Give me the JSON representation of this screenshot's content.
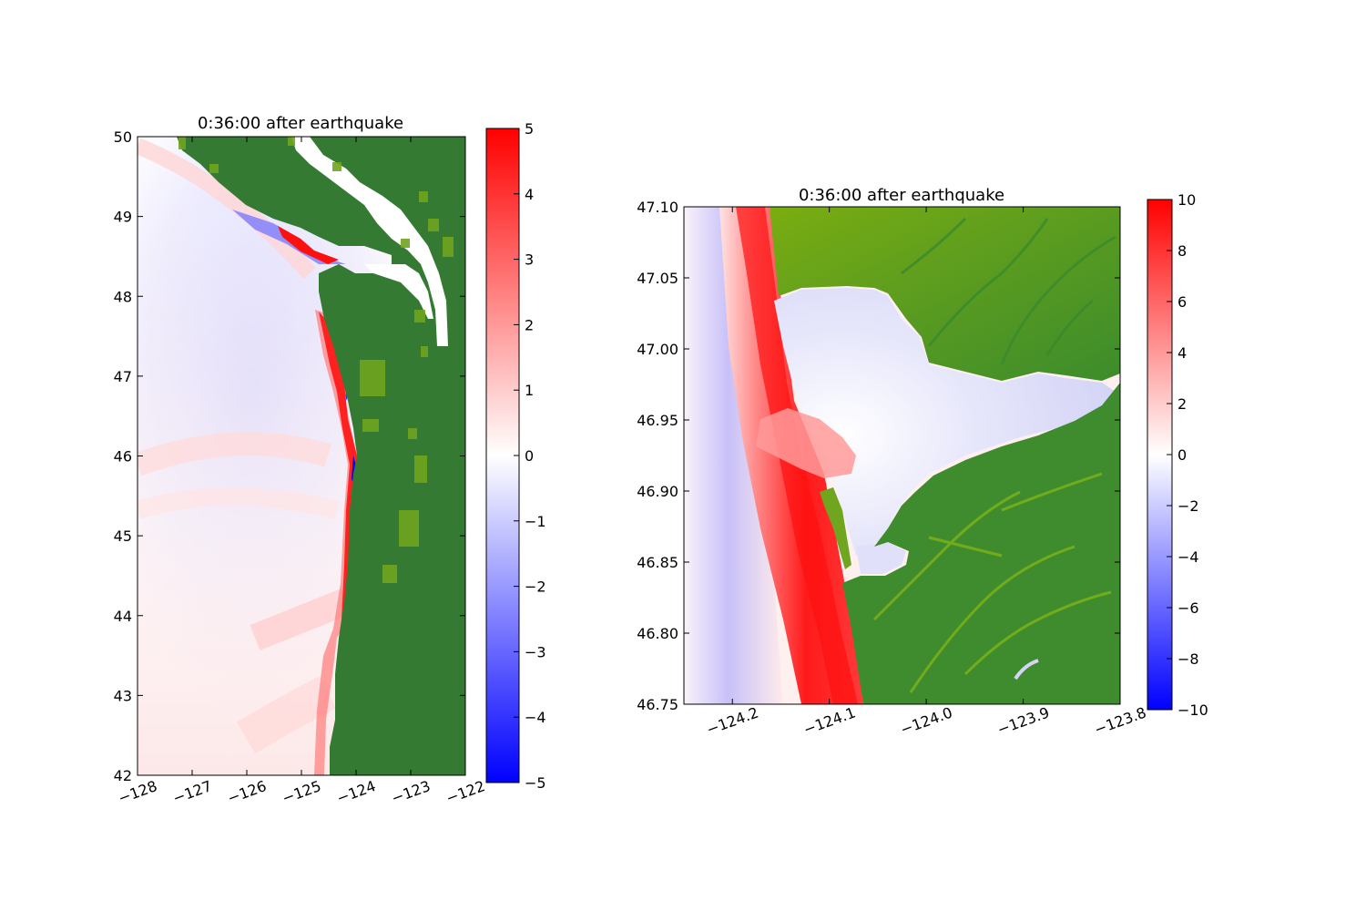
{
  "chart_data": [
    {
      "type": "heatmap",
      "title": "0:36:00 after earthquake",
      "xlabel": "",
      "ylabel": "",
      "xlim": [
        -128,
        -122
      ],
      "ylim": [
        42,
        50
      ],
      "x_ticks": [
        "−128",
        "−127",
        "−126",
        "−125",
        "−124",
        "−123",
        "−122"
      ],
      "y_ticks": [
        "42",
        "43",
        "44",
        "45",
        "46",
        "47",
        "48",
        "49",
        "50"
      ],
      "colorbar": {
        "range": [
          -5,
          5
        ],
        "ticks": [
          "−5",
          "−4",
          "−3",
          "−2",
          "−1",
          "0",
          "1",
          "2",
          "3",
          "4",
          "5"
        ],
        "colormap": "bwr",
        "colors": {
          "low": "#0000ff",
          "mid": "#ffffff",
          "high": "#ff0000"
        }
      },
      "land_color": "#357a32",
      "land_light_color": "#6fa51f",
      "grid": false,
      "legend": "none"
    },
    {
      "type": "heatmap",
      "title": "0:36:00 after earthquake",
      "xlabel": "",
      "ylabel": "",
      "xlim": [
        -124.25,
        -123.8
      ],
      "ylim": [
        46.75,
        47.1
      ],
      "x_ticks": [
        "−124.2",
        "−124.1",
        "−124.0",
        "−123.9",
        "−123.8"
      ],
      "y_ticks": [
        "46.75",
        "46.80",
        "46.85",
        "46.90",
        "46.95",
        "47.00",
        "47.05",
        "47.10"
      ],
      "colorbar": {
        "range": [
          -10,
          10
        ],
        "ticks": [
          "−10",
          "−8",
          "−6",
          "−4",
          "−2",
          "0",
          "2",
          "4",
          "6",
          "8",
          "10"
        ],
        "colormap": "bwr",
        "colors": {
          "low": "#0000ff",
          "mid": "#ffffff",
          "high": "#ff0000"
        }
      },
      "land_color": "#3a8a2c",
      "land_light_color": "#7aad10",
      "grid": false,
      "legend": "none"
    }
  ]
}
